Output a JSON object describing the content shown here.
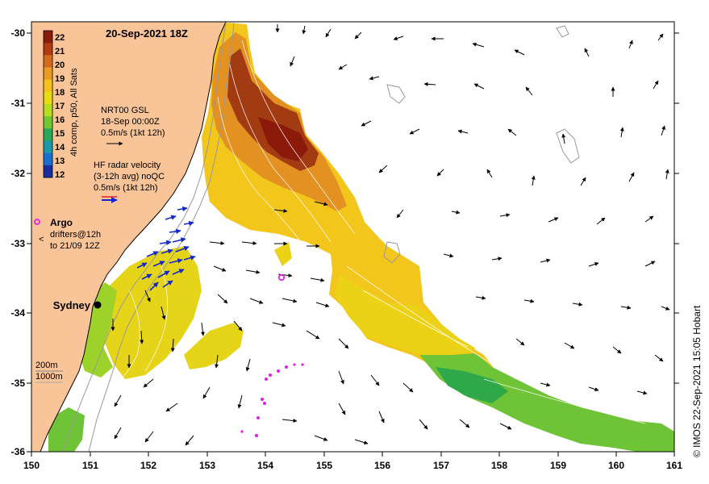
{
  "title": "20-Sep-2021 18Z",
  "colorbar": {
    "label": "4h comp, p50, All Sats",
    "ticks": [
      "22",
      "21",
      "20",
      "19",
      "18",
      "17",
      "16",
      "15",
      "14",
      "13",
      "12"
    ],
    "colors": [
      "#8b1a0a",
      "#b33a0f",
      "#d46a1a",
      "#eb9a22",
      "#f5c21a",
      "#e8dc10",
      "#b8dc1e",
      "#6ec832",
      "#28a85a",
      "#1a9aa8",
      "#1a6ed2",
      "#1a2ea0"
    ]
  },
  "gsl": {
    "line1": "NRT00 GSL",
    "line2": "18-Sep 00:00Z",
    "line3": "0.5m/s (1kt 12h)"
  },
  "hf_radar": {
    "line1": "HF radar velocity",
    "line2": "(3-12h avg) noQC",
    "line3": "0.5m/s (1kt 12h)"
  },
  "argo": {
    "label": "Argo"
  },
  "drifters": {
    "line1": "drifters@12h",
    "line2": "to 21/09 12Z"
  },
  "city": "Sydney",
  "bathymetry": {
    "label1": "200m",
    "label2": "1000m"
  },
  "axes": {
    "x_ticks": [
      "150",
      "151",
      "152",
      "153",
      "154",
      "155",
      "156",
      "157",
      "158",
      "159",
      "160",
      "161"
    ],
    "y_ticks": [
      "-30",
      "-31",
      "-32",
      "-33",
      "-34",
      "-35",
      "-36"
    ],
    "lon_range": [
      150,
      161
    ],
    "lat_range": [
      -36,
      -30
    ]
  },
  "credit": "© IMOS 22-Sep-2021 15:05 Hobart"
}
